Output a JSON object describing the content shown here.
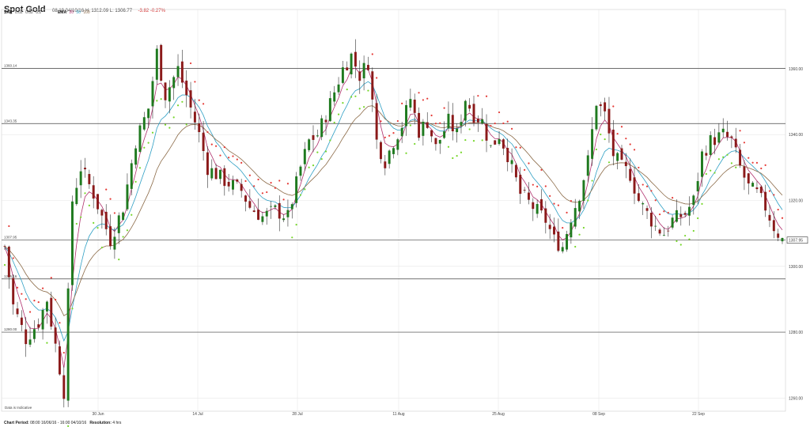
{
  "header": {
    "title": "Spot Gold",
    "meta": "08:19 04/10/16   H: 1312.09   L: 1306.77",
    "change": "-3.82  -0.27%"
  },
  "indicators": {
    "sar_label": "SAR",
    "sar_params": [
      "0.02",
      "0.02",
      "0.2"
    ],
    "ema_label": "EMA",
    "ema_params": [
      "20",
      "50",
      "100"
    ]
  },
  "note": "Data is Indicative",
  "footer": {
    "period_label": "Chart Period:",
    "period_value": "08:00 16/06/16 - 16:00 04/10/16",
    "resolution_label": "Resolution:",
    "resolution_value": "4 hrs"
  },
  "colors": {
    "up": "#1f7a1f",
    "down": "#8b1a1a",
    "wick": "#333333",
    "sar_above": "#e53935",
    "sar_below": "#76d62a",
    "ema20": "#b0306d",
    "ema50": "#2e9fc4",
    "ema100": "#8b6a47",
    "hline": "#444444",
    "grid": "#e6e6e6"
  },
  "chart_data": {
    "type": "candlestick",
    "title": "Spot Gold",
    "ylim": [
      1256,
      1378
    ],
    "y_ticks": [
      "1260.00",
      "1280.00",
      "1300.00",
      "1320.00",
      "1340.00",
      "1360.00"
    ],
    "x_ticks": [
      "30 Jun",
      "14 Jul",
      "28 Jul",
      "11 Aug",
      "25 Aug",
      "08 Sep",
      "22 Sep"
    ],
    "last_price": "1307.95",
    "horizontal_lines": [
      {
        "value": 1360.14,
        "label": "1360.14"
      },
      {
        "value": 1343.35,
        "label": "1343.35"
      },
      {
        "value": 1307.95,
        "label": "1307.95"
      },
      {
        "value": 1296.16,
        "label": "1296.16"
      },
      {
        "value": 1280.0,
        "label": "1280.00"
      }
    ],
    "anchors": [
      [
        0,
        1306
      ],
      [
        2,
        1288
      ],
      [
        5,
        1278
      ],
      [
        8,
        1283
      ],
      [
        10,
        1290
      ],
      [
        12,
        1276
      ],
      [
        14,
        1262
      ],
      [
        16,
        1320
      ],
      [
        18,
        1330
      ],
      [
        21,
        1322
      ],
      [
        25,
        1308
      ],
      [
        28,
        1318
      ],
      [
        31,
        1338
      ],
      [
        34,
        1348
      ],
      [
        36,
        1365
      ],
      [
        38,
        1352
      ],
      [
        41,
        1360
      ],
      [
        43,
        1352
      ],
      [
        46,
        1340
      ],
      [
        48,
        1330
      ],
      [
        52,
        1326
      ],
      [
        56,
        1323
      ],
      [
        58,
        1318
      ],
      [
        61,
        1315
      ],
      [
        64,
        1317
      ],
      [
        67,
        1315
      ],
      [
        70,
        1330
      ],
      [
        72,
        1338
      ],
      [
        74,
        1340
      ],
      [
        76,
        1346
      ],
      [
        78,
        1353
      ],
      [
        80,
        1360
      ],
      [
        82,
        1364
      ],
      [
        84,
        1358
      ],
      [
        86,
        1362
      ],
      [
        88,
        1338
      ],
      [
        90,
        1332
      ],
      [
        92,
        1338
      ],
      [
        94,
        1343
      ],
      [
        96,
        1351
      ],
      [
        98,
        1341
      ],
      [
        100,
        1344
      ],
      [
        102,
        1336
      ],
      [
        105,
        1344
      ],
      [
        107,
        1340
      ],
      [
        109,
        1351
      ],
      [
        111,
        1346
      ],
      [
        113,
        1344
      ],
      [
        115,
        1336
      ],
      [
        117,
        1340
      ],
      [
        119,
        1334
      ],
      [
        122,
        1322
      ],
      [
        125,
        1318
      ],
      [
        128,
        1314
      ],
      [
        130,
        1308
      ],
      [
        132,
        1306
      ],
      [
        134,
        1315
      ],
      [
        136,
        1322
      ],
      [
        138,
        1332
      ],
      [
        140,
        1350
      ],
      [
        142,
        1346
      ],
      [
        144,
        1334
      ],
      [
        146,
        1330
      ],
      [
        148,
        1328
      ],
      [
        150,
        1320
      ],
      [
        152,
        1316
      ],
      [
        154,
        1312
      ],
      [
        156,
        1310
      ],
      [
        158,
        1314
      ],
      [
        161,
        1316
      ],
      [
        163,
        1320
      ],
      [
        165,
        1334
      ],
      [
        167,
        1338
      ],
      [
        170,
        1340
      ],
      [
        172,
        1338
      ],
      [
        174,
        1330
      ],
      [
        176,
        1324
      ],
      [
        178,
        1322
      ],
      [
        180,
        1318
      ],
      [
        182,
        1312
      ],
      [
        184,
        1308
      ]
    ]
  }
}
